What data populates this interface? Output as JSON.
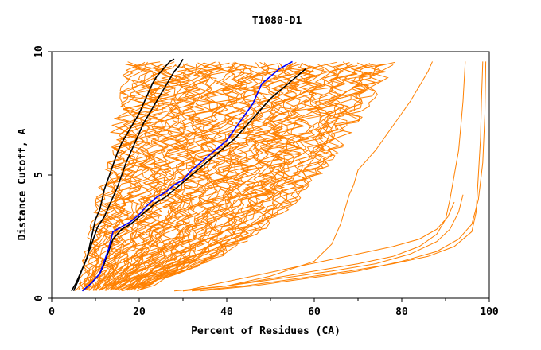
{
  "chart_data": {
    "type": "line",
    "title": "T1080-D1",
    "xlabel": "Percent of Residues (CA)",
    "ylabel": "Distance Cutoff, A",
    "xlim": [
      0,
      100
    ],
    "ylim": [
      0,
      10
    ],
    "xticks": [
      0,
      20,
      40,
      60,
      80,
      100
    ],
    "yticks": [
      0,
      5,
      10
    ],
    "grid": false,
    "colors": {
      "background_lines": "#ff8000",
      "highlight_black": "#000000",
      "highlight_blue": "#0000ff",
      "axes": "#000000"
    },
    "series": [
      {
        "name": "black-model-1",
        "color": "#000000",
        "x": [
          5,
          6,
          7,
          8,
          8.5,
          9,
          9.5,
          10,
          11,
          11.5,
          12,
          13,
          14,
          15,
          16,
          17,
          18,
          19,
          20,
          21,
          22,
          23,
          24,
          25,
          26,
          27,
          28
        ],
        "y": [
          0.3,
          0.7,
          1.2,
          1.6,
          2.0,
          2.4,
          2.8,
          3.2,
          3.6,
          4.0,
          4.4,
          4.9,
          5.4,
          5.9,
          6.3,
          6.6,
          6.9,
          7.2,
          7.5,
          7.9,
          8.3,
          8.7,
          9.0,
          9.2,
          9.4,
          9.6,
          9.7
        ]
      },
      {
        "name": "black-model-2",
        "color": "#000000",
        "x": [
          4.5,
          5.5,
          6.5,
          7.5,
          8.5,
          9.5,
          10.5,
          12,
          13,
          14,
          15,
          16,
          17,
          18,
          19,
          20,
          21,
          22,
          23,
          24,
          25,
          26,
          27,
          28,
          29,
          30
        ],
        "y": [
          0.3,
          0.6,
          1.0,
          1.4,
          1.9,
          2.4,
          2.9,
          3.3,
          3.7,
          4.1,
          4.5,
          5.0,
          5.5,
          5.9,
          6.3,
          6.7,
          7.1,
          7.4,
          7.7,
          8.0,
          8.3,
          8.6,
          8.9,
          9.2,
          9.4,
          9.7
        ]
      },
      {
        "name": "black-model-3",
        "color": "#000000",
        "x": [
          7,
          9,
          11,
          12,
          13,
          14,
          16,
          18,
          20,
          22,
          24,
          26,
          28,
          30,
          32,
          34,
          36,
          38,
          40,
          42,
          44,
          46,
          48,
          50,
          52,
          54,
          56,
          58
        ],
        "y": [
          0.3,
          0.6,
          1.0,
          1.4,
          1.9,
          2.4,
          2.8,
          3.0,
          3.3,
          3.6,
          3.9,
          4.1,
          4.4,
          4.7,
          5.0,
          5.3,
          5.6,
          5.9,
          6.2,
          6.5,
          6.9,
          7.3,
          7.7,
          8.1,
          8.4,
          8.7,
          9.0,
          9.3
        ]
      },
      {
        "name": "blue-model",
        "color": "#0000ff",
        "x": [
          7,
          9,
          11,
          12,
          13,
          14,
          16,
          18,
          20,
          22,
          24,
          26,
          28,
          30,
          32,
          34,
          36,
          38,
          40,
          42,
          44,
          46,
          47,
          48,
          50,
          52,
          54,
          55
        ],
        "y": [
          0.3,
          0.6,
          1.0,
          1.5,
          2.0,
          2.7,
          2.9,
          3.1,
          3.4,
          3.8,
          4.1,
          4.3,
          4.6,
          4.8,
          5.2,
          5.5,
          5.8,
          6.1,
          6.4,
          6.9,
          7.4,
          7.9,
          8.3,
          8.7,
          9.0,
          9.3,
          9.5,
          9.6
        ]
      },
      {
        "name": "outlier-model-1",
        "color": "#ff8000",
        "x": [
          30,
          40,
          50,
          60,
          64,
          66,
          67,
          68,
          69,
          70,
          72,
          74,
          76,
          78,
          80,
          82,
          84,
          86,
          87
        ],
        "y": [
          0.3,
          0.5,
          0.9,
          1.5,
          2.2,
          3.0,
          3.6,
          4.2,
          4.6,
          5.2,
          5.6,
          6.0,
          6.5,
          7.0,
          7.5,
          8.0,
          8.6,
          9.2,
          9.6
        ]
      },
      {
        "name": "outlier-model-2",
        "color": "#ff8000",
        "x": [
          30,
          40,
          50,
          60,
          70,
          78,
          84,
          88,
          90,
          91,
          92,
          93,
          93.5,
          94,
          94.5
        ],
        "y": [
          0.3,
          0.5,
          0.8,
          1.1,
          1.4,
          1.7,
          2.1,
          2.6,
          3.2,
          4.0,
          5.0,
          6.0,
          7.0,
          8.0,
          9.6
        ]
      },
      {
        "name": "outlier-model-3",
        "color": "#ff8000",
        "x": [
          28,
          40,
          52,
          64,
          74,
          82,
          88,
          91,
          93,
          94
        ],
        "y": [
          0.3,
          0.5,
          0.8,
          1.1,
          1.4,
          1.8,
          2.3,
          2.8,
          3.5,
          4.2
        ]
      },
      {
        "name": "outlier-model-4",
        "color": "#ff8000",
        "x": [
          32,
          44,
          56,
          68,
          78,
          86,
          92,
          96,
          97,
          97.5,
          98,
          98.2,
          98.4,
          98.5
        ],
        "y": [
          0.3,
          0.5,
          0.8,
          1.1,
          1.4,
          1.7,
          2.1,
          2.7,
          3.5,
          5.0,
          6.5,
          8.0,
          9.0,
          9.6
        ]
      },
      {
        "name": "outlier-model-5",
        "color": "#ff8000",
        "x": [
          34,
          46,
          58,
          70,
          80,
          88,
          93,
          96,
          97.5,
          98.5,
          99,
          99.2
        ],
        "y": [
          0.3,
          0.5,
          0.8,
          1.1,
          1.5,
          1.9,
          2.4,
          3.0,
          4.0,
          5.5,
          7.5,
          9.6
        ]
      },
      {
        "name": "outlier-model-6",
        "color": "#ff8000",
        "x": [
          30,
          38,
          46,
          54,
          62,
          70,
          78,
          84,
          88,
          90.5,
          92
        ],
        "y": [
          0.3,
          0.6,
          0.9,
          1.2,
          1.5,
          1.8,
          2.1,
          2.4,
          2.8,
          3.3,
          3.9
        ]
      }
    ],
    "ensemble": {
      "name": "background-models",
      "color": "#ff8000",
      "count": 70,
      "left_envelope_x": [
        6,
        7,
        8,
        9,
        10,
        11,
        12,
        13,
        14,
        15,
        16,
        17,
        17.5,
        18
      ],
      "right_envelope_x": [
        20,
        26,
        36,
        44,
        50,
        55,
        59,
        63,
        66,
        69,
        72,
        75,
        77,
        78
      ],
      "envelope_y": [
        0.3,
        0.8,
        1.5,
        2.3,
        3.1,
        3.9,
        4.7,
        5.5,
        6.3,
        7.1,
        7.9,
        8.7,
        9.3,
        9.6
      ]
    }
  }
}
